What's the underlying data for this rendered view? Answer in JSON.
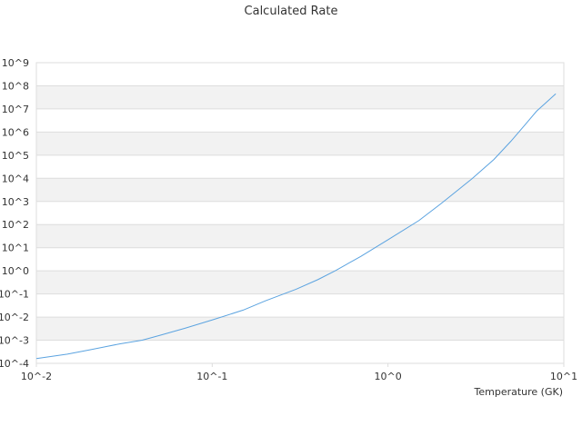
{
  "chart_data": {
    "type": "line",
    "title": "Calculated Rate",
    "xlabel": "Temperature (GK)",
    "ylabel": "",
    "x_scale": "log",
    "y_scale": "log",
    "xlim": [
      0.01,
      10
    ],
    "ylim": [
      0.0001,
      1000000000
    ],
    "x_tick_labels": [
      "10^-2",
      "10^-1",
      "10^0",
      "10^1"
    ],
    "y_tick_labels": [
      "10^-4",
      "10^-3",
      "10^-2",
      "10^-1",
      "10^0",
      "10^1",
      "10^2",
      "10^3",
      "10^4",
      "10^5",
      "10^6",
      "10^7",
      "10^8",
      "10^9"
    ],
    "grid": "alternating horizontal bands",
    "legend": "none",
    "colors": {
      "line": "#5ba3e0",
      "band": "#f2f2f2",
      "grid": "#dddddd",
      "text": "#333333"
    },
    "series": [
      {
        "x": [
          0.01,
          0.015,
          0.02,
          0.03,
          0.04,
          0.05,
          0.07,
          0.1,
          0.15,
          0.2,
          0.3,
          0.4,
          0.5,
          0.7,
          1.0,
          1.5,
          2.0,
          3.0,
          4.0,
          5.0,
          6.0,
          7.0,
          8.0,
          9.0
        ],
        "y": [
          0.00016,
          0.00025,
          0.00038,
          0.0007,
          0.001,
          0.0016,
          0.0033,
          0.0075,
          0.02,
          0.05,
          0.16,
          0.42,
          1.0,
          4.2,
          22,
          150,
          800,
          9500,
          65000,
          400000,
          2000000,
          8000000,
          20000000,
          45000000
        ]
      }
    ]
  }
}
